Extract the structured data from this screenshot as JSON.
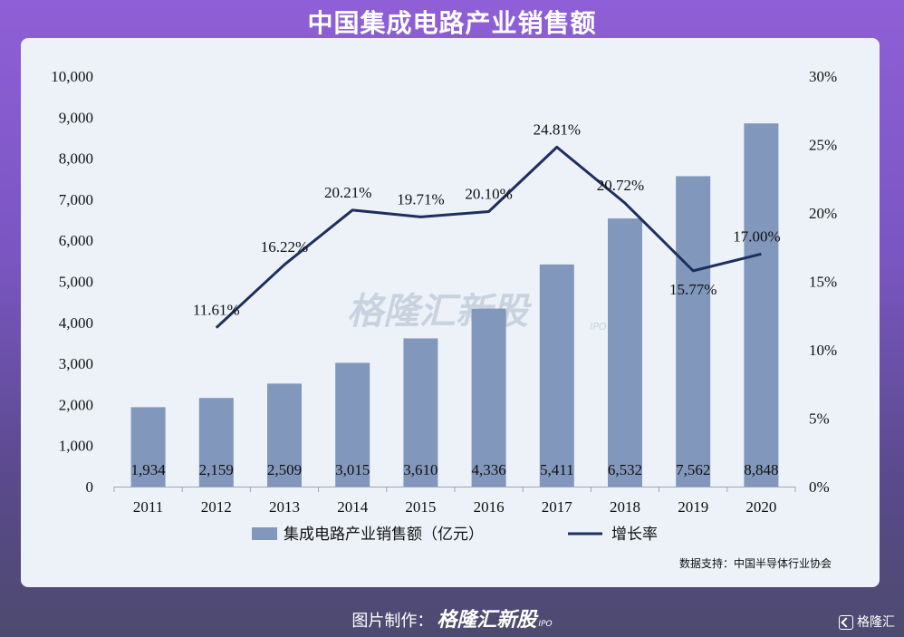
{
  "title": "中国集成电路产业销售额",
  "source": "数据支持：中国半导体行业协会",
  "watermark": {
    "text": "格隆汇新股",
    "sub": "IPO"
  },
  "footer": {
    "label": "图片制作：",
    "brand": "格隆汇新股",
    "ipo": "IPO"
  },
  "corner_brand": "格隆汇",
  "colors": {
    "bar": "#8197bb",
    "line": "#1e2f5e",
    "panel": "#ecf2f8",
    "background": "#8a5cd0"
  },
  "chart_data": {
    "type": "bar",
    "combo": "bar+line",
    "categories": [
      "2011",
      "2012",
      "2013",
      "2014",
      "2015",
      "2016",
      "2017",
      "2018",
      "2019",
      "2020"
    ],
    "series": [
      {
        "name": "集成电路产业销售额（亿元）",
        "type": "bar",
        "axis": "left",
        "values": [
          1934,
          2159,
          2509,
          3015,
          3610,
          4336,
          5411,
          6532,
          7562,
          8848
        ],
        "labels": [
          "1,934",
          "2,159",
          "2,509",
          "3,015",
          "3,610",
          "4,336",
          "5,411",
          "6,532",
          "7,562",
          "8,848"
        ]
      },
      {
        "name": "增长率",
        "type": "line",
        "axis": "right",
        "values": [
          null,
          11.61,
          16.22,
          20.21,
          19.71,
          20.1,
          24.81,
          20.72,
          15.77,
          17.0
        ],
        "labels": [
          "",
          "11.61%",
          "16.22%",
          "20.21%",
          "19.71%",
          "20.10%",
          "24.81%",
          "20.72%",
          "15.77%",
          "17.00%"
        ]
      }
    ],
    "y_left": {
      "min": 0,
      "max": 10000,
      "ticks": [
        "0",
        "1,000",
        "2,000",
        "3,000",
        "4,000",
        "5,000",
        "6,000",
        "7,000",
        "8,000",
        "9,000",
        "10,000"
      ]
    },
    "y_right": {
      "min": 0,
      "max": 30,
      "ticks": [
        "0%",
        "5%",
        "10%",
        "15%",
        "20%",
        "25%",
        "30%"
      ]
    },
    "legend": "bottom",
    "grid": false
  }
}
